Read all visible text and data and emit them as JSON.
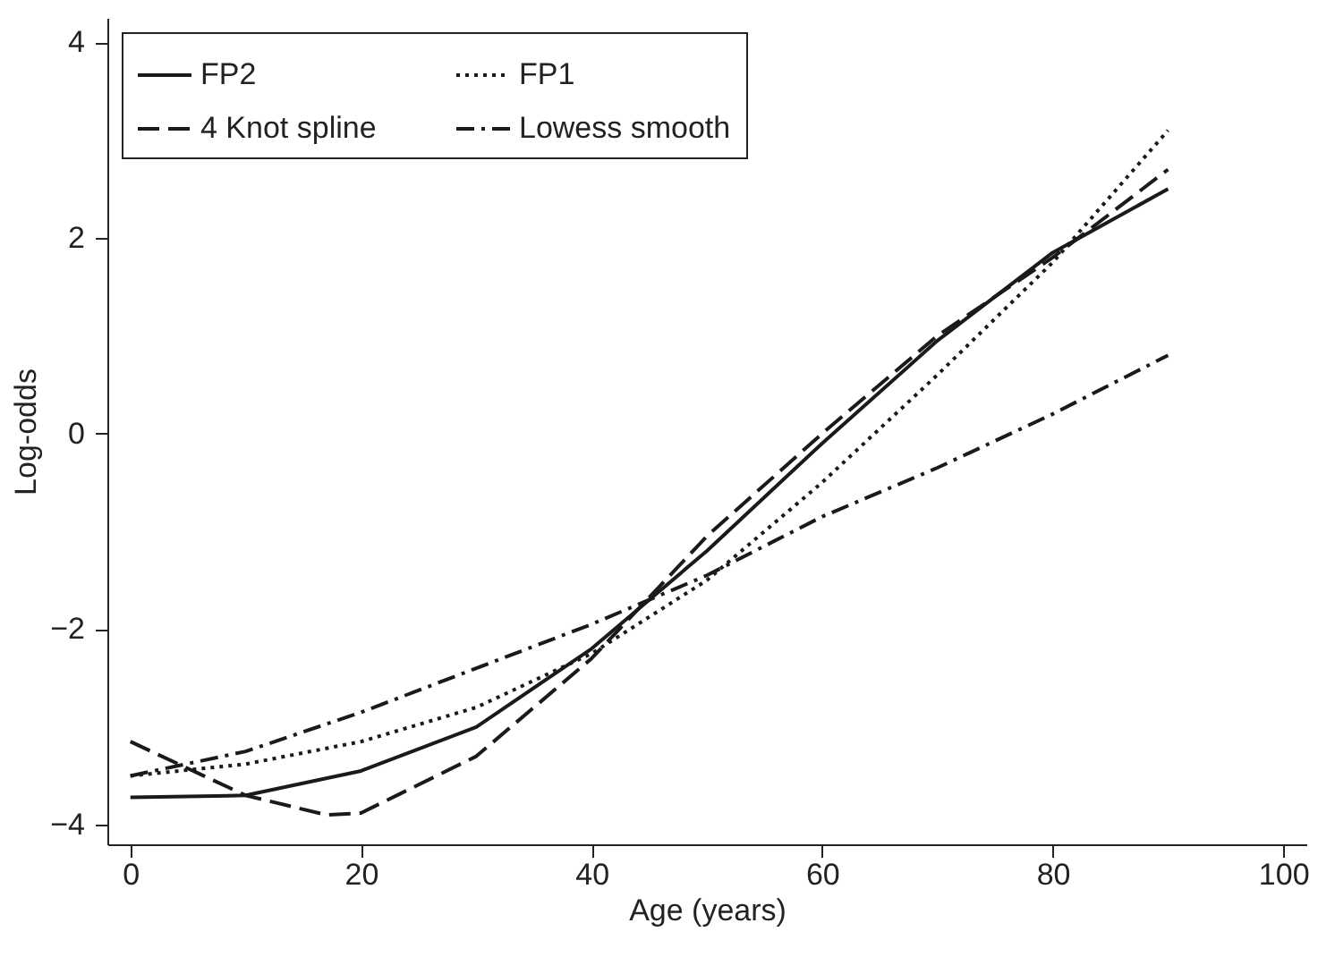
{
  "chart_data": {
    "type": "line",
    "xlabel": "Age (years)",
    "ylabel": "Log-odds",
    "xlim": [
      -2,
      102
    ],
    "ylim": [
      -4.2,
      4.25
    ],
    "xticks": [
      0,
      20,
      40,
      60,
      80,
      100
    ],
    "yticks": [
      {
        "value": -4,
        "label": "−4"
      },
      {
        "value": -2,
        "label": "−2"
      },
      0,
      2,
      4
    ],
    "grid": false,
    "legend": "top left",
    "marker": "none",
    "series": [
      {
        "name": "FP2",
        "color": "#1a1a1a",
        "line_style": "solid",
        "x": [
          0,
          10,
          20,
          30,
          40,
          50,
          60,
          70,
          80,
          90
        ],
        "values": [
          -3.72,
          -3.7,
          -3.45,
          -3.0,
          -2.2,
          -1.2,
          -0.1,
          0.95,
          1.85,
          2.5
        ]
      },
      {
        "name": "FP1",
        "color": "#1a1a1a",
        "line_style": "dotted",
        "x": [
          0,
          10,
          20,
          30,
          40,
          50,
          60,
          70,
          80,
          90
        ],
        "values": [
          -3.5,
          -3.38,
          -3.15,
          -2.8,
          -2.25,
          -1.5,
          -0.5,
          0.6,
          1.75,
          3.1
        ]
      },
      {
        "name": "4 Knot spline",
        "color": "#1a1a1a",
        "line_style": "dashed",
        "x": [
          0,
          10,
          17,
          20,
          30,
          40,
          50,
          60,
          70,
          80,
          90
        ],
        "values": [
          -3.15,
          -3.7,
          -3.9,
          -3.88,
          -3.3,
          -2.3,
          -1.05,
          0.0,
          1.0,
          1.8,
          2.7
        ]
      },
      {
        "name": "Lowess smooth",
        "color": "#1a1a1a",
        "line_style": "dashdot",
        "x": [
          0,
          10,
          20,
          30,
          40,
          45,
          50,
          60,
          70,
          80,
          90
        ],
        "values": [
          -3.5,
          -3.25,
          -2.85,
          -2.4,
          -1.95,
          -1.7,
          -1.45,
          -0.85,
          -0.35,
          0.2,
          0.8
        ]
      }
    ]
  }
}
